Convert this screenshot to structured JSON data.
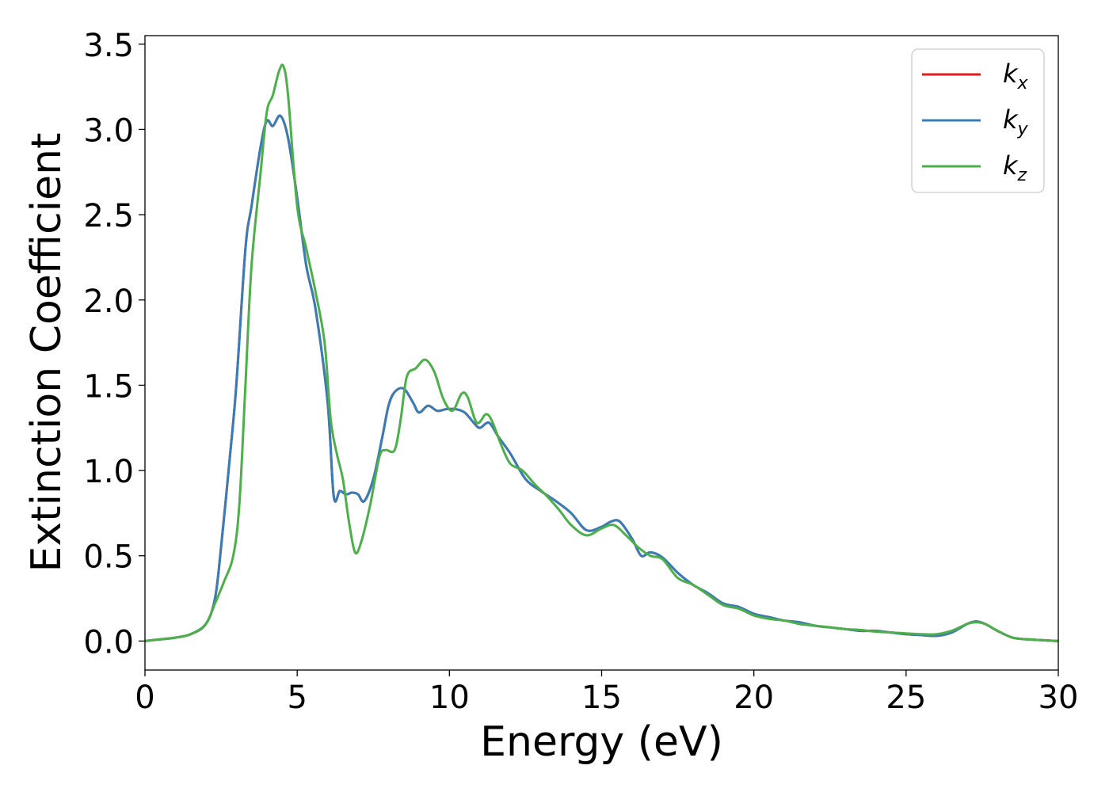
{
  "chart_data": {
    "type": "line",
    "title": "",
    "xlabel": "Energy (eV)",
    "ylabel": "Extinction Coefficient",
    "xlim": [
      0,
      30
    ],
    "ylim": [
      -0.17,
      3.55
    ],
    "xticks": [
      0,
      5,
      10,
      15,
      20,
      25,
      30
    ],
    "xtick_labels": [
      "0",
      "5",
      "10",
      "15",
      "20",
      "25",
      "30"
    ],
    "yticks": [
      0.0,
      0.5,
      1.0,
      1.5,
      2.0,
      2.5,
      3.0,
      3.5
    ],
    "ytick_labels": [
      "0.0",
      "0.5",
      "1.0",
      "1.5",
      "2.0",
      "2.5",
      "3.0",
      "3.5"
    ],
    "grid": false,
    "legend_position": "top-right",
    "series": [
      {
        "name": "k_x",
        "legend_base": "k",
        "legend_sub": "x",
        "color": "#e41a1c",
        "x": [
          0,
          0.5,
          1.0,
          1.5,
          2.0,
          2.3,
          2.5,
          2.8,
          3.0,
          3.3,
          3.5,
          3.8,
          4.0,
          4.2,
          4.45,
          4.7,
          5.0,
          5.3,
          5.6,
          6.0,
          6.2,
          6.4,
          6.6,
          6.8,
          7.0,
          7.2,
          7.5,
          7.8,
          8.0,
          8.2,
          8.5,
          8.8,
          9.0,
          9.3,
          9.6,
          9.9,
          10.2,
          10.5,
          10.8,
          11.0,
          11.3,
          11.6,
          12.0,
          12.5,
          13.0,
          13.5,
          14.0,
          14.5,
          15.0,
          15.3,
          15.6,
          16.0,
          16.3,
          16.6,
          17.0,
          17.5,
          18.0,
          18.5,
          19.0,
          19.5,
          20.0,
          20.5,
          21.0,
          21.5,
          22.0,
          22.5,
          23.0,
          23.5,
          24.0,
          24.5,
          25.0,
          25.5,
          26.0,
          26.5,
          27.0,
          27.3,
          27.6,
          28.0,
          28.5,
          29.0,
          30.0
        ],
        "y": [
          0.0,
          0.01,
          0.02,
          0.04,
          0.1,
          0.25,
          0.55,
          1.1,
          1.5,
          2.3,
          2.55,
          2.9,
          3.05,
          3.02,
          3.08,
          2.95,
          2.6,
          2.2,
          1.95,
          1.4,
          0.85,
          0.88,
          0.86,
          0.87,
          0.86,
          0.82,
          0.95,
          1.2,
          1.38,
          1.46,
          1.48,
          1.4,
          1.34,
          1.38,
          1.35,
          1.36,
          1.36,
          1.34,
          1.28,
          1.25,
          1.28,
          1.2,
          1.1,
          0.95,
          0.88,
          0.82,
          0.75,
          0.65,
          0.67,
          0.7,
          0.7,
          0.6,
          0.5,
          0.52,
          0.49,
          0.4,
          0.33,
          0.28,
          0.22,
          0.2,
          0.16,
          0.14,
          0.12,
          0.11,
          0.09,
          0.08,
          0.07,
          0.06,
          0.06,
          0.05,
          0.04,
          0.035,
          0.03,
          0.05,
          0.1,
          0.115,
          0.1,
          0.06,
          0.02,
          0.01,
          0.0
        ]
      },
      {
        "name": "k_y",
        "legend_base": "k",
        "legend_sub": "y",
        "color": "#377eb8",
        "x": [
          0,
          0.5,
          1.0,
          1.5,
          2.0,
          2.3,
          2.5,
          2.8,
          3.0,
          3.3,
          3.5,
          3.8,
          4.0,
          4.2,
          4.45,
          4.7,
          5.0,
          5.3,
          5.6,
          6.0,
          6.2,
          6.4,
          6.6,
          6.8,
          7.0,
          7.2,
          7.5,
          7.8,
          8.0,
          8.2,
          8.5,
          8.8,
          9.0,
          9.3,
          9.6,
          9.9,
          10.2,
          10.5,
          10.8,
          11.0,
          11.3,
          11.6,
          12.0,
          12.5,
          13.0,
          13.5,
          14.0,
          14.5,
          15.0,
          15.3,
          15.6,
          16.0,
          16.3,
          16.6,
          17.0,
          17.5,
          18.0,
          18.5,
          19.0,
          19.5,
          20.0,
          20.5,
          21.0,
          21.5,
          22.0,
          22.5,
          23.0,
          23.5,
          24.0,
          24.5,
          25.0,
          25.5,
          26.0,
          26.5,
          27.0,
          27.3,
          27.6,
          28.0,
          28.5,
          29.0,
          30.0
        ],
        "y": [
          0.0,
          0.01,
          0.02,
          0.04,
          0.1,
          0.25,
          0.55,
          1.1,
          1.5,
          2.3,
          2.55,
          2.9,
          3.05,
          3.02,
          3.08,
          2.95,
          2.6,
          2.2,
          1.95,
          1.4,
          0.85,
          0.88,
          0.86,
          0.87,
          0.86,
          0.82,
          0.95,
          1.2,
          1.38,
          1.46,
          1.48,
          1.4,
          1.34,
          1.38,
          1.35,
          1.36,
          1.36,
          1.34,
          1.28,
          1.25,
          1.28,
          1.2,
          1.1,
          0.95,
          0.88,
          0.82,
          0.75,
          0.65,
          0.67,
          0.7,
          0.7,
          0.6,
          0.5,
          0.52,
          0.49,
          0.4,
          0.33,
          0.28,
          0.22,
          0.2,
          0.16,
          0.14,
          0.12,
          0.11,
          0.09,
          0.08,
          0.07,
          0.06,
          0.06,
          0.05,
          0.04,
          0.035,
          0.03,
          0.05,
          0.1,
          0.115,
          0.1,
          0.06,
          0.02,
          0.01,
          0.0
        ]
      },
      {
        "name": "k_z",
        "legend_base": "k",
        "legend_sub": "z",
        "color": "#4daf4a",
        "x": [
          0,
          0.5,
          1.0,
          1.5,
          2.0,
          2.3,
          2.6,
          2.9,
          3.1,
          3.3,
          3.5,
          3.8,
          4.0,
          4.2,
          4.4,
          4.55,
          4.7,
          5.0,
          5.3,
          5.6,
          5.9,
          6.1,
          6.3,
          6.5,
          6.7,
          6.9,
          7.1,
          7.4,
          7.7,
          7.9,
          8.2,
          8.4,
          8.6,
          8.9,
          9.2,
          9.5,
          9.8,
          10.1,
          10.4,
          10.6,
          10.9,
          11.2,
          11.4,
          11.7,
          12.0,
          12.4,
          12.8,
          13.2,
          13.6,
          14.0,
          14.5,
          15.0,
          15.4,
          15.8,
          16.2,
          16.6,
          17.0,
          17.5,
          18.0,
          18.5,
          19.0,
          19.5,
          20.0,
          20.5,
          21.0,
          21.5,
          22.0,
          22.5,
          23.0,
          23.5,
          24.0,
          24.5,
          25.0,
          25.5,
          26.0,
          26.5,
          27.0,
          27.3,
          27.6,
          28.0,
          28.5,
          29.0,
          30.0
        ],
        "y": [
          0.0,
          0.01,
          0.02,
          0.04,
          0.1,
          0.22,
          0.35,
          0.5,
          0.8,
          1.5,
          2.2,
          2.75,
          3.1,
          3.2,
          3.34,
          3.37,
          3.2,
          2.55,
          2.3,
          2.05,
          1.75,
          1.3,
          1.1,
          0.95,
          0.7,
          0.52,
          0.58,
          0.8,
          1.08,
          1.12,
          1.12,
          1.3,
          1.55,
          1.6,
          1.65,
          1.58,
          1.42,
          1.35,
          1.45,
          1.43,
          1.28,
          1.33,
          1.29,
          1.15,
          1.04,
          1.0,
          0.92,
          0.85,
          0.77,
          0.68,
          0.62,
          0.66,
          0.68,
          0.62,
          0.55,
          0.5,
          0.48,
          0.37,
          0.33,
          0.27,
          0.21,
          0.19,
          0.15,
          0.13,
          0.12,
          0.1,
          0.09,
          0.08,
          0.07,
          0.065,
          0.055,
          0.05,
          0.045,
          0.04,
          0.04,
          0.06,
          0.1,
          0.11,
          0.1,
          0.06,
          0.02,
          0.01,
          0.0
        ]
      }
    ]
  }
}
